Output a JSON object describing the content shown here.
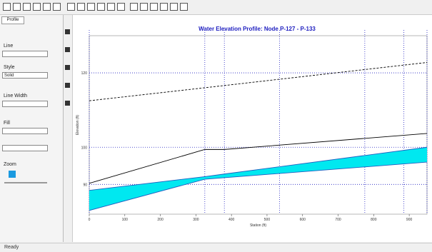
{
  "sidebar": {
    "tab": "Profile",
    "labels": [
      "Line",
      "Style",
      "Solid",
      "Line Width",
      "Fill",
      "Zoom"
    ]
  },
  "status": "Ready",
  "chart_data": {
    "type": "line",
    "title": "Water Elevation Profile: Node P-127 - P-133",
    "x_label": "Station (ft)",
    "y_label": "Elevation (ft)",
    "x": [
      0,
      325,
      380,
      950
    ],
    "series": [
      {
        "color": "#000000",
        "dashed": true,
        "values": [
          112.5,
          116.0,
          116.6,
          122.8
        ]
      },
      {
        "color": "#000000",
        "dashed": false,
        "values": [
          90.3,
          99.4,
          99.4,
          103.7
        ]
      },
      {
        "color": "#2060c0",
        "dashed": false,
        "values": [
          88.4,
          92.1,
          92.8,
          100
        ]
      },
      {
        "color": "#2060c0",
        "dashed": false,
        "values": [
          83.0,
          91.4,
          91.8,
          96.0
        ]
      }
    ],
    "fill_color": "#00e8f0",
    "node_stations": [
      0,
      325,
      380,
      535,
      775,
      885,
      950
    ],
    "xlim": [
      0,
      950
    ],
    "xticks": [
      0,
      100,
      200,
      300,
      400,
      500,
      600,
      700,
      800,
      900
    ],
    "ylim": [
      82,
      130
    ],
    "yticks": [
      90,
      100,
      120
    ],
    "grid": true,
    "grid_color": "#2020c0"
  }
}
